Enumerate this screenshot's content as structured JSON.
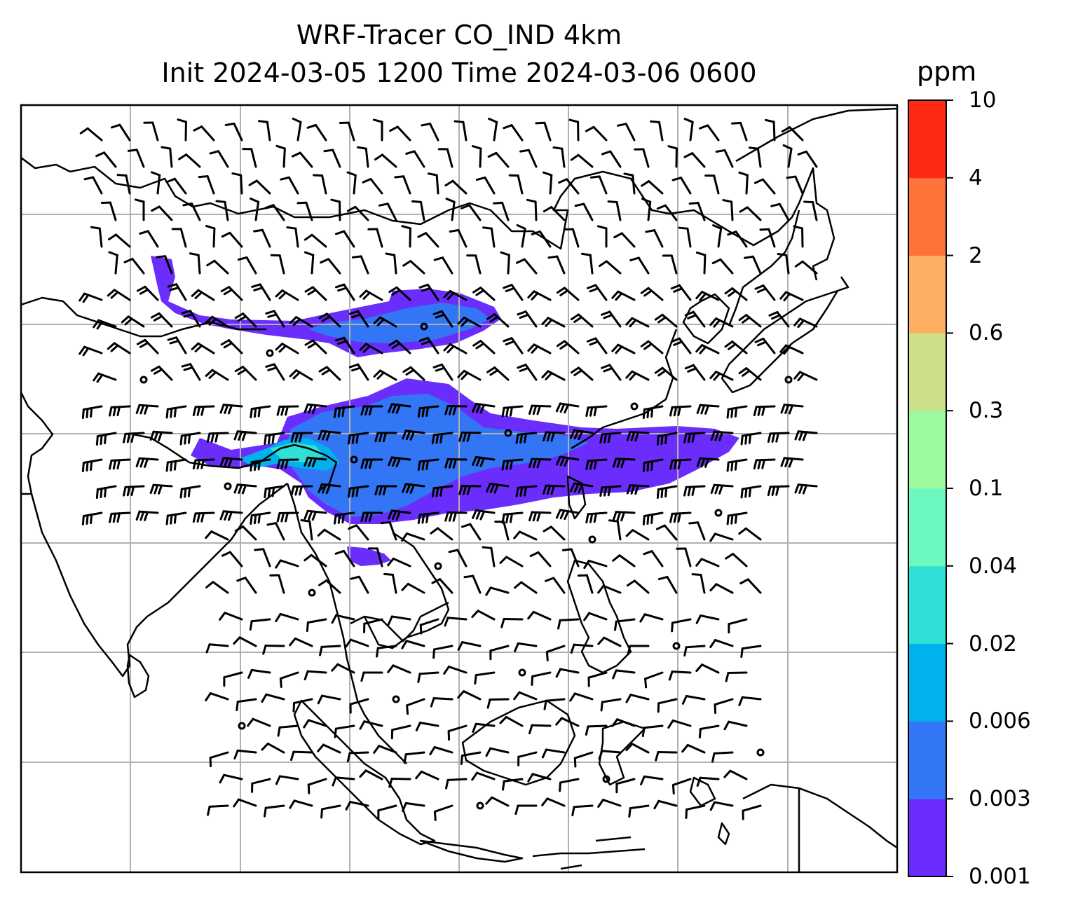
{
  "title": {
    "line1": "WRF-Tracer CO_IND 4km",
    "line2": "Init 2024-03-05 1200 Time 2024-03-06 0600"
  },
  "colorbar": {
    "unit": "ppm",
    "levels": [
      "0.001",
      "0.003",
      "0.006",
      "0.02",
      "0.04",
      "0.1",
      "0.3",
      "0.6",
      "2",
      "4",
      "10"
    ],
    "colors": [
      "#6a2dfc",
      "#3276f5",
      "#00b2ec",
      "#2fe0d6",
      "#6cf8be",
      "#9cfa9e",
      "#cde089",
      "#fdb062",
      "#fe7438",
      "#fe2a16"
    ]
  },
  "map": {
    "plume_colors": {
      "level1": "#6a2dfc",
      "level2": "#3276f5",
      "level3": "#00b2ec",
      "level4": "#2fe0d6"
    },
    "grid_color": "#b0b0b0"
  }
}
